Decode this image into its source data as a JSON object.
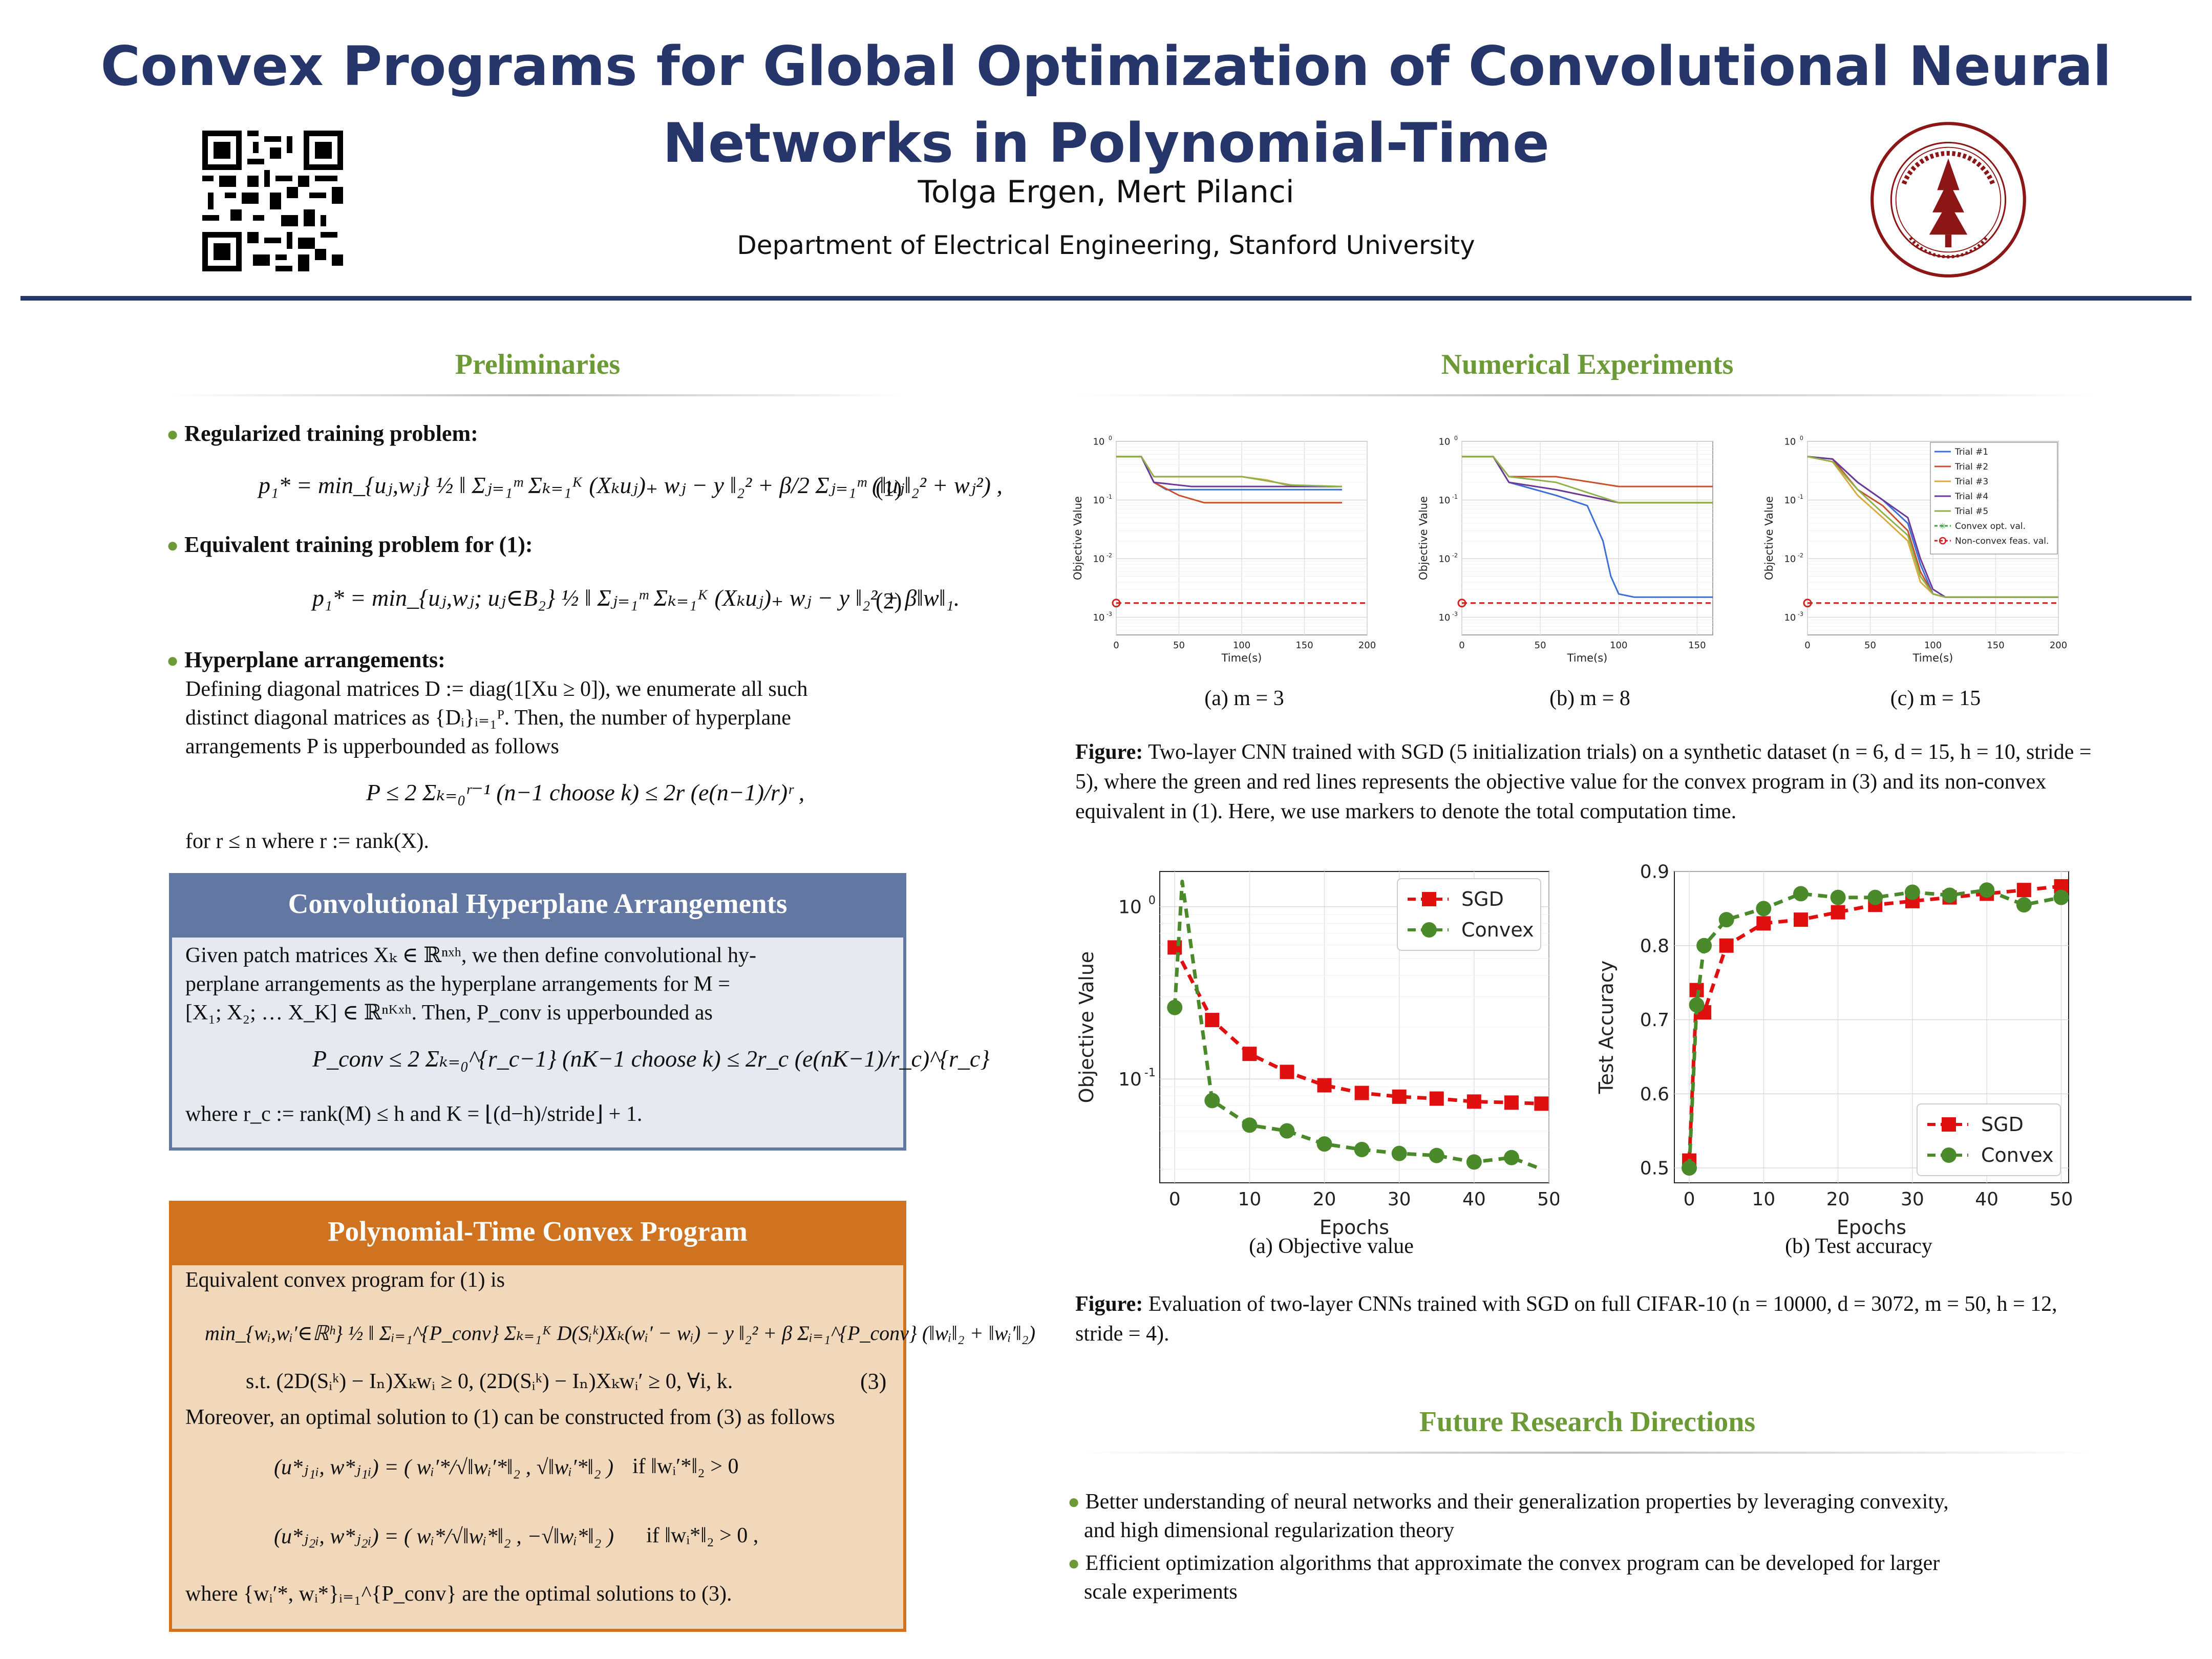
{
  "header": {
    "title": "Convex Programs for Global Optimization of Convolutional Neural Networks in Polynomial-Time",
    "authors": "Tolga Ergen, Mert Pilanci",
    "department": "Department of Electrical Engineering, Stanford University"
  },
  "preliminaries": {
    "title": "Preliminaries",
    "b1_head": "Regularized training problem:",
    "eq1": "p₁* = min_{uⱼ,wⱼ} ½ ‖ Σⱼ₌₁ᵐ Σₖ₌₁ᴷ (Xₖuⱼ)₊ wⱼ − y ‖₂² + β/2 Σⱼ₌₁ᵐ (‖uⱼ‖₂² + wⱼ²) ,",
    "eq1_num": "(1)",
    "b2_head": "Equivalent training problem for (1):",
    "eq2": "p₁* = min_{uⱼ,wⱼ; uⱼ∈B₂} ½ ‖ Σⱼ₌₁ᵐ Σₖ₌₁ᴷ (Xₖuⱼ)₊ wⱼ − y ‖₂² + β‖w‖₁.",
    "eq2_num": "(2)",
    "b3_head": "Hyperplane arrangements:",
    "b3_line1": "Defining diagonal matrices D := diag(1[Xu ≥ 0]), we enumerate all such",
    "b3_line2": "distinct diagonal matrices as {Dᵢ}ᵢ₌₁ᴾ. Then, the number of hyperplane",
    "b3_line3": "arrangements P is upperbounded as follows",
    "eq3": "P ≤ 2 Σₖ₌₀ʳ⁻¹ (n−1 choose k) ≤ 2r (e(n−1)/r)ʳ ,",
    "b3_tail": "for r ≤ n where r := rank(X)."
  },
  "conv_box": {
    "title": "Convolutional Hyperplane Arrangements",
    "line1": "Given patch matrices Xₖ ∈ ℝⁿˣʰ, we then define convolutional hy-",
    "line2": "perplane arrangements as the hyperplane arrangements for M =",
    "line3": "[X₁; X₂; … X_K] ∈ ℝⁿᴷˣʰ. Then, P_conv is upperbounded as",
    "eq": "P_conv ≤ 2 Σₖ₌₀^{r_c−1} (nK−1 choose k) ≤ 2r_c (e(nK−1)/r_c)^{r_c}",
    "line4": "where r_c := rank(M) ≤ h and K = ⌊(d−h)/stride⌋ + 1."
  },
  "poly_box": {
    "title": "Polynomial-Time Convex Program",
    "line1": "Equivalent convex program for (1) is",
    "eq_a": "min_{wᵢ,wᵢ′∈ℝʰ} ½ ‖ Σᵢ₌₁^{P_conv} Σₖ₌₁ᴷ D(Sᵢᵏ)Xₖ(wᵢ′ − wᵢ) − y ‖₂² + β Σᵢ₌₁^{P_conv} (‖wᵢ‖₂ + ‖wᵢ′‖₂)",
    "eq_b": "s.t. (2D(Sᵢᵏ) − Iₙ)Xₖwᵢ ≥ 0, (2D(Sᵢᵏ) − Iₙ)Xₖwᵢ′ ≥ 0, ∀i, k.",
    "eq_b_num": "(3)",
    "line2": "Moreover, an optimal solution to (1) can be constructed from (3) as follows",
    "eq_c": "(u*ⱼ₁ᵢ, w*ⱼ₁ᵢ) = ( wᵢ′*/√‖wᵢ′*‖₂ , √‖wᵢ′*‖₂ )",
    "eq_c_cond": "if   ‖wᵢ′*‖₂ > 0",
    "eq_d": "(u*ⱼ₂ᵢ, w*ⱼ₂ᵢ) = ( wᵢ*/√‖wᵢ*‖₂ , −√‖wᵢ*‖₂ )",
    "eq_d_cond": "if   ‖wᵢ*‖₂ > 0 ,",
    "line3": "where {wᵢ′*, wᵢ*}ᵢ₌₁^{P_conv} are the optimal solutions to (3)."
  },
  "experiments": {
    "title": "Numerical Experiments",
    "sub_a": "(a)  m = 3",
    "sub_b": "(b)  m = 8",
    "sub_c": "(c)  m = 15",
    "fig1_bold": "Figure:",
    "fig1_text": " Two-layer CNN trained with SGD (5 initialization trials) on a synthetic dataset (n = 6, d = 15, h = 10, stride = 5), where the green and red lines represents the objective value for the convex program in (3) and its non-convex equivalent in (1). Here, we use markers to denote the total computation time.",
    "sub2_a": "(a)  Objective value",
    "sub2_b": "(b)  Test accuracy",
    "fig2_bold": "Figure:",
    "fig2_text": " Evaluation of two-layer CNNs trained with SGD on full CIFAR-10 (n = 10000, d = 3072, m = 50, h = 12, stride = 4)."
  },
  "future": {
    "title": "Future Research Directions",
    "items": [
      "Better understanding of neural networks and their generalization properties by leveraging convexity,",
      "and high dimensional regularization theory",
      "Efficient optimization algorithms that approximate the convex program can be developed for larger",
      "scale experiments"
    ]
  },
  "colors": {
    "trial1": "#3b6fd6",
    "trial2": "#c8502a",
    "trial3": "#d9a93a",
    "trial4": "#6a3a9a",
    "trial5": "#8fb04a",
    "convex": "#3aa03a",
    "nonconvex": "#d62020",
    "sgd": "#e01010",
    "convex_cifar": "#4a8a2a"
  },
  "chart_data": [
    {
      "type": "line",
      "title": "",
      "xlabel": "Time(s)",
      "ylabel": "Objective Value",
      "yscale": "log",
      "xlim": [
        0,
        200
      ],
      "ylim": [
        0.0005,
        1
      ],
      "xticks": [
        "0",
        "50",
        "100",
        "150",
        "200"
      ],
      "yticks": [
        "10^0",
        "10^-1",
        "10^-2",
        "10^-3"
      ],
      "series": [
        {
          "x": [
            0,
            20,
            30,
            40,
            60,
            100,
            140,
            180
          ],
          "y": [
            0.55,
            0.55,
            0.2,
            0.15,
            0.15,
            0.15,
            0.15,
            0.15
          ]
        },
        {
          "x": [
            0,
            20,
            30,
            50,
            70,
            100,
            140,
            180
          ],
          "y": [
            0.55,
            0.55,
            0.2,
            0.12,
            0.09,
            0.09,
            0.09,
            0.09
          ]
        },
        {
          "x": [
            0,
            20,
            30,
            60,
            100,
            120,
            140,
            180
          ],
          "y": [
            0.55,
            0.55,
            0.25,
            0.25,
            0.25,
            0.22,
            0.17,
            0.17
          ]
        },
        {
          "x": [
            0,
            20,
            30,
            60,
            100,
            180
          ],
          "y": [
            0.55,
            0.55,
            0.2,
            0.17,
            0.17,
            0.17
          ]
        },
        {
          "x": [
            0,
            20,
            30,
            60,
            100,
            140,
            180
          ],
          "y": [
            0.55,
            0.55,
            0.25,
            0.25,
            0.25,
            0.18,
            0.17
          ]
        },
        {
          "name": "Convex opt. val.",
          "x": [
            0,
            200
          ],
          "y": [
            0.00175,
            0.00175
          ]
        },
        {
          "name": "Non-convex feas. val.",
          "x": [
            0,
            200
          ],
          "y": [
            0.00175,
            0.00175
          ]
        }
      ]
    },
    {
      "type": "line",
      "title": "",
      "xlabel": "Time(s)",
      "ylabel": "Objective Value",
      "yscale": "log",
      "xlim": [
        0,
        160
      ],
      "ylim": [
        0.0005,
        1
      ],
      "xticks": [
        "0",
        "50",
        "100",
        "150"
      ],
      "yticks": [
        "10^0",
        "10^-1",
        "10^-2",
        "10^-3"
      ],
      "series": [
        {
          "x": [
            0,
            20,
            30,
            60,
            80,
            90,
            95,
            100,
            110,
            160
          ],
          "y": [
            0.55,
            0.55,
            0.2,
            0.12,
            0.08,
            0.02,
            0.005,
            0.0025,
            0.0022,
            0.0022
          ]
        },
        {
          "x": [
            0,
            20,
            30,
            60,
            100,
            160
          ],
          "y": [
            0.55,
            0.55,
            0.25,
            0.25,
            0.17,
            0.17
          ]
        },
        {
          "x": [
            0,
            20,
            30,
            60,
            100,
            160
          ],
          "y": [
            0.55,
            0.55,
            0.2,
            0.15,
            0.09,
            0.09
          ]
        },
        {
          "x": [
            0,
            20,
            30,
            60,
            100,
            160
          ],
          "y": [
            0.55,
            0.55,
            0.2,
            0.15,
            0.09,
            0.09
          ]
        },
        {
          "x": [
            0,
            20,
            30,
            60,
            100,
            160
          ],
          "y": [
            0.55,
            0.55,
            0.25,
            0.2,
            0.09,
            0.09
          ]
        },
        {
          "name": "Convex opt. val.",
          "x": [
            0,
            160
          ],
          "y": [
            0.00175,
            0.00175
          ]
        },
        {
          "name": "Non-convex feas. val.",
          "x": [
            0,
            160
          ],
          "y": [
            0.00175,
            0.00175
          ]
        }
      ]
    },
    {
      "type": "line",
      "title": "",
      "xlabel": "Time(s)",
      "ylabel": "Objective Value",
      "yscale": "log",
      "xlim": [
        0,
        200
      ],
      "ylim": [
        0.0005,
        1
      ],
      "xticks": [
        "0",
        "50",
        "100",
        "150",
        "200"
      ],
      "yticks": [
        "10^0",
        "10^-1",
        "10^-2",
        "10^-3"
      ],
      "series": [
        {
          "name": "Trial #1",
          "x": [
            0,
            20,
            40,
            60,
            80,
            90,
            100,
            110,
            200
          ],
          "y": [
            0.55,
            0.5,
            0.2,
            0.1,
            0.04,
            0.008,
            0.0025,
            0.0022,
            0.0022
          ]
        },
        {
          "name": "Trial #2",
          "x": [
            0,
            20,
            40,
            60,
            80,
            90,
            100,
            110,
            200
          ],
          "y": [
            0.55,
            0.5,
            0.15,
            0.08,
            0.03,
            0.006,
            0.0025,
            0.0022,
            0.0022
          ]
        },
        {
          "name": "Trial #3",
          "x": [
            0,
            20,
            40,
            60,
            80,
            90,
            100,
            110,
            200
          ],
          "y": [
            0.55,
            0.45,
            0.12,
            0.05,
            0.02,
            0.004,
            0.0025,
            0.0022,
            0.0022
          ]
        },
        {
          "name": "Trial #4",
          "x": [
            0,
            20,
            40,
            60,
            80,
            90,
            100,
            110,
            200
          ],
          "y": [
            0.55,
            0.5,
            0.2,
            0.1,
            0.05,
            0.01,
            0.003,
            0.0022,
            0.0022
          ]
        },
        {
          "name": "Trial #5",
          "x": [
            0,
            20,
            40,
            60,
            80,
            90,
            100,
            110,
            200
          ],
          "y": [
            0.55,
            0.45,
            0.15,
            0.06,
            0.025,
            0.005,
            0.0025,
            0.0022,
            0.0022
          ]
        },
        {
          "name": "Convex opt. val.",
          "x": [
            0,
            200
          ],
          "y": [
            0.00175,
            0.00175
          ]
        },
        {
          "name": "Non-convex feas. val.",
          "x": [
            0,
            200
          ],
          "y": [
            0.00175,
            0.00175
          ]
        }
      ],
      "legend": "top-right"
    },
    {
      "type": "line",
      "title": "",
      "xlabel": "Epochs",
      "ylabel": "Objective Value",
      "yscale": "log",
      "xlim": [
        -2,
        50
      ],
      "ylim": [
        0.025,
        1.6
      ],
      "xticks": [
        "0",
        "10",
        "20",
        "30",
        "40",
        "50"
      ],
      "yticks": [
        "10^0",
        "10^-1"
      ],
      "series": [
        {
          "name": "SGD",
          "x": [
            0,
            5,
            10,
            15,
            20,
            25,
            30,
            35,
            40,
            45,
            49
          ],
          "y": [
            0.58,
            0.22,
            0.14,
            0.11,
            0.092,
            0.083,
            0.079,
            0.077,
            0.074,
            0.073,
            0.072
          ]
        },
        {
          "name": "Convex",
          "x": [
            0,
            1,
            5,
            10,
            15,
            20,
            25,
            30,
            35,
            40,
            45,
            49
          ],
          "y": [
            0.26,
            1.4,
            0.075,
            0.054,
            0.05,
            0.042,
            0.039,
            0.037,
            0.036,
            0.033,
            0.035,
            0.03
          ]
        }
      ],
      "legend": "top-right"
    },
    {
      "type": "line",
      "title": "",
      "xlabel": "Epochs",
      "ylabel": "Test Accuracy",
      "xlim": [
        -2,
        51
      ],
      "ylim": [
        0.48,
        0.9
      ],
      "xticks": [
        "0",
        "10",
        "20",
        "30",
        "40",
        "50"
      ],
      "yticks": [
        "0.5",
        "0.6",
        "0.7",
        "0.8",
        "0.9"
      ],
      "series": [
        {
          "name": "SGD",
          "x": [
            0,
            1,
            2,
            5,
            10,
            15,
            20,
            25,
            30,
            35,
            40,
            45,
            50
          ],
          "y": [
            0.51,
            0.74,
            0.71,
            0.8,
            0.83,
            0.835,
            0.845,
            0.855,
            0.86,
            0.865,
            0.87,
            0.875,
            0.88
          ]
        },
        {
          "name": "Convex",
          "x": [
            0,
            1,
            2,
            5,
            10,
            15,
            20,
            25,
            30,
            35,
            40,
            45,
            50
          ],
          "y": [
            0.5,
            0.72,
            0.8,
            0.835,
            0.85,
            0.87,
            0.865,
            0.865,
            0.872,
            0.868,
            0.875,
            0.855,
            0.865
          ]
        }
      ],
      "legend": "bottom-right"
    }
  ]
}
